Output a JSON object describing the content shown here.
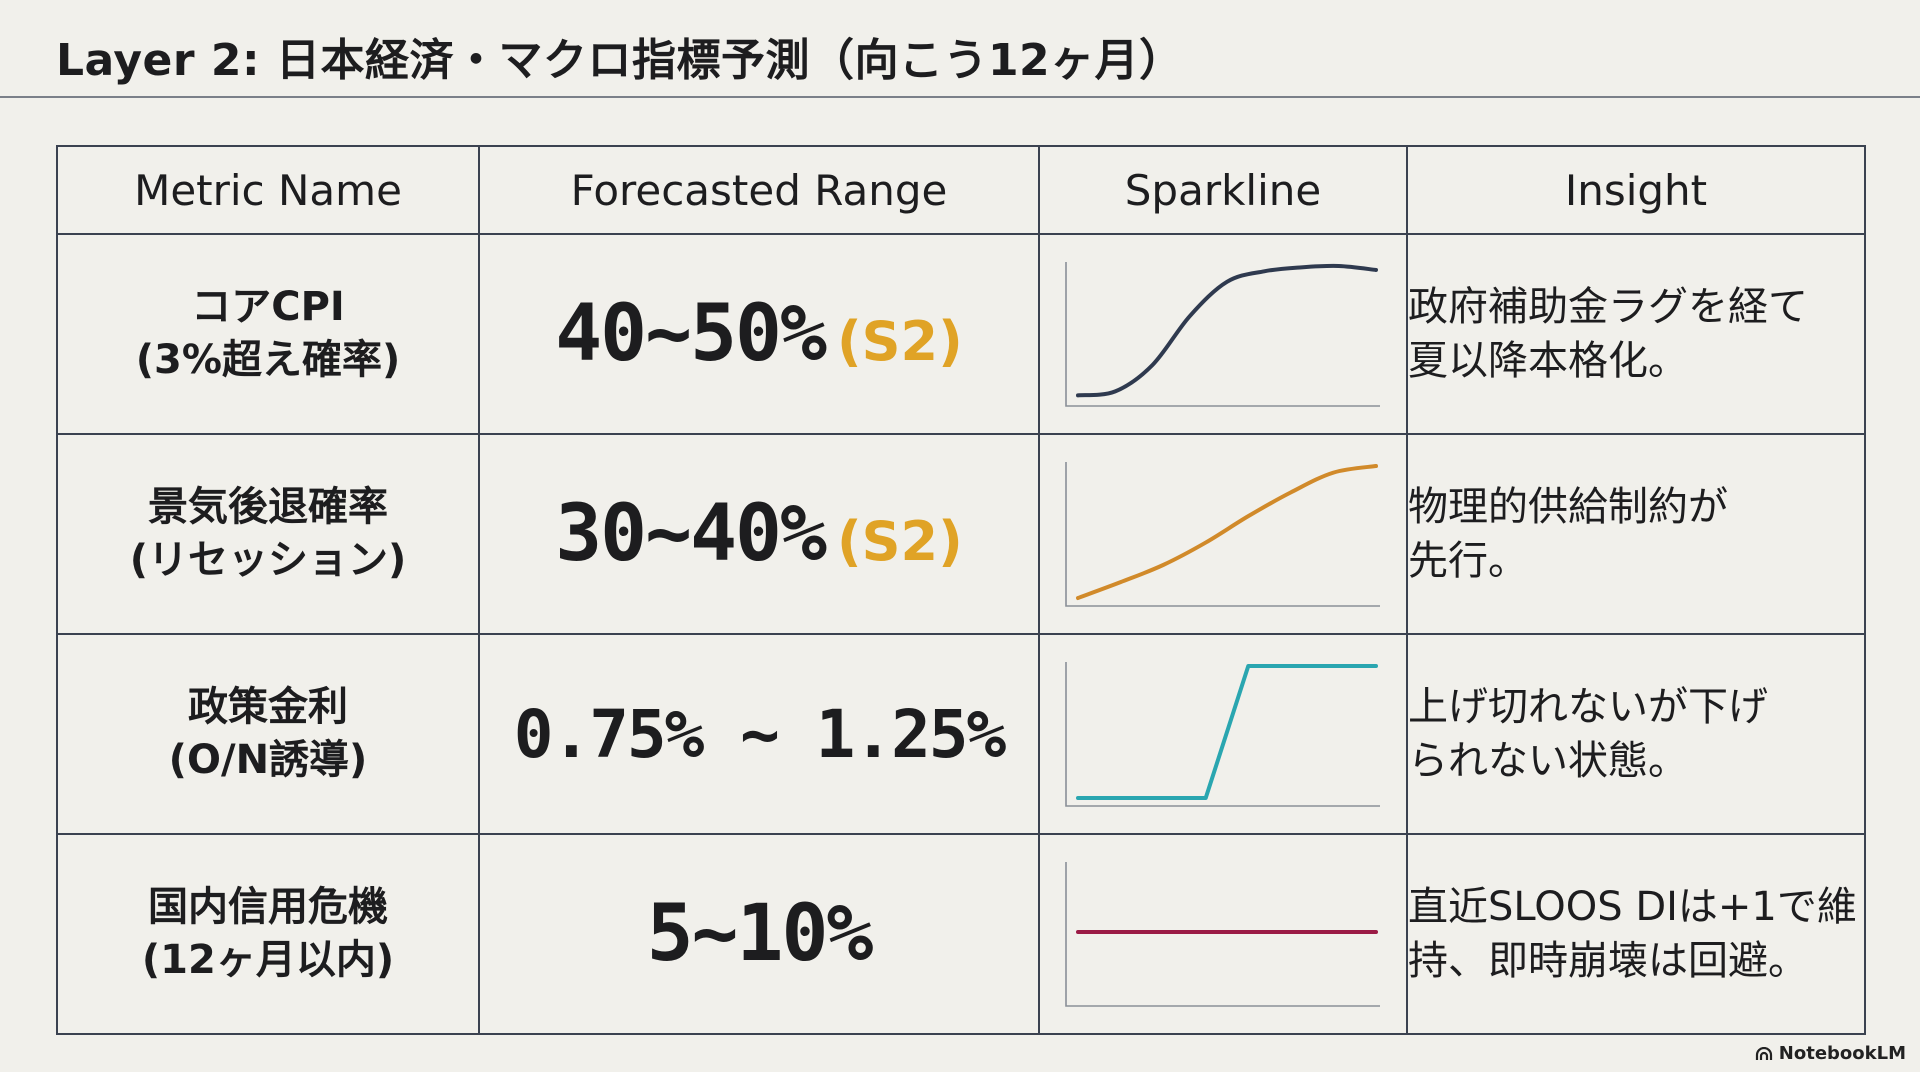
{
  "title": "Layer 2: 日本経済・マクロ指標予測（向こう12ヶ月）",
  "headers": {
    "metric": "Metric Name",
    "range": "Forecasted Range",
    "sparkline": "Sparkline",
    "insight": "Insight"
  },
  "rows": [
    {
      "metric_line1": "コアCPI",
      "metric_line2": "(3%超え確率)",
      "range": "40~50%",
      "tag": "(S2)",
      "insight_line1": "政府補助金ラグを経て",
      "insight_line2": "夏以降本格化。"
    },
    {
      "metric_line1": "景気後退確率",
      "metric_line2": "(リセッション)",
      "range": "30~40%",
      "tag": "(S2)",
      "insight_line1": "物理的供給制約が",
      "insight_line2": "先行。"
    },
    {
      "metric_line1": "政策金利",
      "metric_line2": "(O/N誘導)",
      "range": "0.75% ~ 1.25%",
      "tag": "",
      "insight_line1": "上げ切れないが下げ",
      "insight_line2": "られない状態。"
    },
    {
      "metric_line1": "国内信用危機",
      "metric_line2": "(12ヶ月以内)",
      "range": "5~10%",
      "tag": "",
      "insight_line1": "直近SLOOS DIは+1で維",
      "insight_line2": "持、即時崩壊は回避。"
    }
  ],
  "sparklines": {
    "cpi": {
      "color": "#2f3a4f",
      "values": [
        0.02,
        0.05,
        0.25,
        0.62,
        0.88,
        0.96,
        0.99,
        1.0,
        0.97
      ]
    },
    "recession": {
      "color": "#d18a2a",
      "values": [
        0.0,
        0.12,
        0.25,
        0.42,
        0.62,
        0.8,
        0.95,
        1.0
      ]
    },
    "policy": {
      "color": "#2aa6b0",
      "values": [
        0.0,
        0.0,
        0.0,
        0.0,
        1.0,
        1.0,
        1.0,
        1.0
      ]
    },
    "credit": {
      "color": "#9b1b45",
      "values": [
        0.5,
        0.5,
        0.5,
        0.5
      ]
    }
  },
  "colors": {
    "tag": "#e0a326",
    "border": "#3b4250",
    "background": "#f1f0eb"
  },
  "brand": "NotebookLM"
}
